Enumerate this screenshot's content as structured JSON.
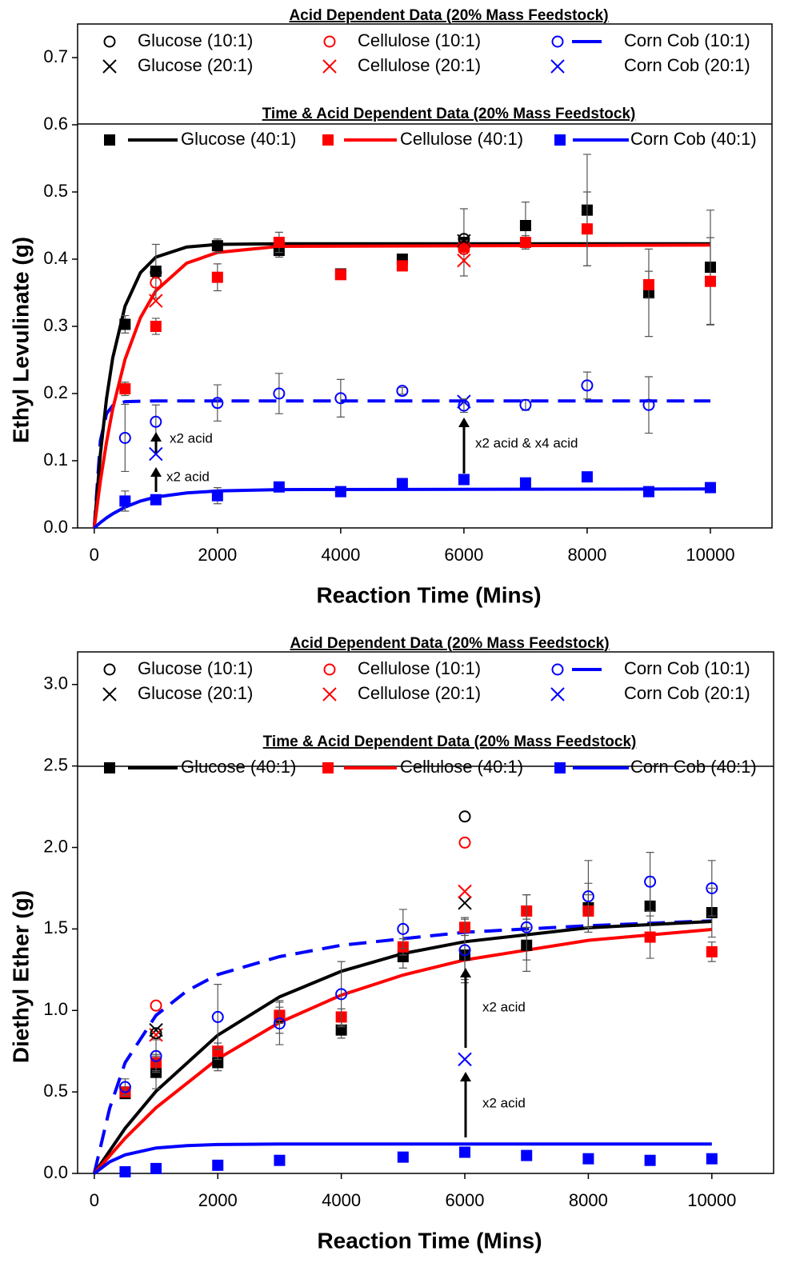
{
  "chart_data": [
    {
      "type": "scatter",
      "y_label": "Ethyl Levulinate (g)",
      "x_label": "Reaction Time (Mins)",
      "legend_titles": [
        "Acid Dependent Data (20% Mass Feedstock)",
        "Time & Acid Dependent Data (20% Mass Feedstock)"
      ],
      "xlim": [
        -270,
        11000
      ],
      "xticks": [
        0,
        2000,
        4000,
        6000,
        8000,
        10000
      ],
      "ylim": [
        0,
        0.75
      ],
      "yticks": [
        {
          "value": 0,
          "label": "0.0"
        },
        0.1,
        0.2,
        0.3,
        0.4,
        0.5,
        0.6,
        0.7
      ],
      "annotations": [
        "x2 acid",
        "x2 acid",
        "x2 acid & x4 acid"
      ],
      "series": [
        {
          "name": "Glucose (10:1)",
          "color": "#000000",
          "marker": "circle",
          "x": [
            1000,
            6000
          ],
          "values": [
            0.38,
            0.43
          ]
        },
        {
          "name": "Cellulose (10:1)",
          "color": "#ff0000",
          "marker": "circle",
          "x": [
            1000,
            6000
          ],
          "values": [
            0.365,
            0.415
          ]
        },
        {
          "name": "Corn Cob (10:1)",
          "color": "#0000ff",
          "marker": "circle",
          "x": [
            500,
            1000,
            2000,
            3000,
            4000,
            5000,
            6000,
            7000,
            8000,
            9000
          ],
          "values": [
            0.134,
            0.158,
            0.186,
            0.2,
            0.193,
            0.204,
            0.182,
            0.183,
            0.212,
            0.183
          ],
          "errors": [
            0.05,
            0.025,
            0.027,
            0.03,
            0.028,
            0.005,
            0.01,
            0.008,
            0.02,
            0.042
          ],
          "fit_style": "dashed",
          "fit": {
            "x": [
              0,
              100,
              200,
              300,
              500,
              1000,
              10000
            ],
            "values": [
              0,
              0.13,
              0.17,
              0.182,
              0.188,
              0.189,
              0.189
            ]
          }
        },
        {
          "name": "Glucose (20:1)",
          "color": "#000000",
          "marker": "x",
          "x": [
            6000
          ],
          "values": [
            0.427
          ]
        },
        {
          "name": "Cellulose (20:1)",
          "color": "#ff0000",
          "marker": "x",
          "x": [
            1000,
            6000
          ],
          "values": [
            0.338,
            0.398
          ]
        },
        {
          "name": "Corn Cob (20:1)",
          "color": "#0000ff",
          "marker": "x",
          "x": [
            1000,
            6000
          ],
          "values": [
            0.11,
            0.188
          ]
        },
        {
          "name": "Glucose (40:1)",
          "color": "#000000",
          "marker": "square",
          "x": [
            500,
            1000,
            2000,
            3000,
            4000,
            5000,
            6000,
            7000,
            8000,
            9000,
            10000
          ],
          "values": [
            0.303,
            0.382,
            0.42,
            0.413,
            0.378,
            0.4,
            0.425,
            0.45,
            0.473,
            0.35,
            0.388
          ],
          "errors": [
            0.013,
            0.04,
            0.01,
            0.01,
            0.005,
            0.005,
            0.05,
            0.035,
            0.083,
            0.065,
            0.085
          ],
          "fit_style": "solid",
          "fit": {
            "x": [
              0,
              100,
              200,
              300,
              500,
              750,
              1000,
              1500,
              2000,
              3000,
              10000
            ],
            "values": [
              0,
              0.11,
              0.193,
              0.253,
              0.33,
              0.38,
              0.403,
              0.418,
              0.422,
              0.423,
              0.423
            ]
          }
        },
        {
          "name": "Cellulose (40:1)",
          "color": "#ff0000",
          "marker": "square",
          "x": [
            500,
            1000,
            2000,
            3000,
            4000,
            5000,
            6000,
            7000,
            8000,
            9000,
            10000
          ],
          "values": [
            0.207,
            0.3,
            0.373,
            0.425,
            0.377,
            0.39,
            0.418,
            0.425,
            0.445,
            0.362,
            0.367
          ],
          "errors": [
            0.01,
            0.012,
            0.02,
            0.015,
            0.005,
            0.005,
            0.01,
            0.01,
            0.055,
            0.02,
            0.065
          ],
          "fit_style": "solid",
          "fit": {
            "x": [
              0,
              100,
              200,
              300,
              500,
              750,
              1000,
              1500,
              2000,
              3000,
              10000
            ],
            "values": [
              0,
              0.07,
              0.128,
              0.177,
              0.251,
              0.313,
              0.353,
              0.394,
              0.41,
              0.419,
              0.421
            ]
          }
        },
        {
          "name": "Corn Cob (40:1)",
          "color": "#0000ff",
          "marker": "square",
          "x": [
            500,
            1000,
            2000,
            3000,
            4000,
            5000,
            6000,
            7000,
            8000,
            9000,
            10000
          ],
          "values": [
            0.04,
            0.042,
            0.048,
            0.061,
            0.054,
            0.066,
            0.072,
            0.067,
            0.076,
            0.054,
            0.06
          ],
          "errors": [
            0.015,
            0.005,
            0.012,
            0.005,
            0.005,
            0.005,
            0.005,
            0.005,
            0.005,
            0.005,
            0.005
          ],
          "fit_style": "solid",
          "fit": {
            "x": [
              0,
              100,
              200,
              300,
              500,
              750,
              1000,
              1500,
              2000,
              3000,
              10000
            ],
            "values": [
              0,
              0.008,
              0.015,
              0.021,
              0.031,
              0.04,
              0.046,
              0.052,
              0.055,
              0.057,
              0.058
            ]
          }
        }
      ]
    },
    {
      "type": "scatter",
      "y_label": "Diethyl Ether (g)",
      "x_label": "Reaction Time (Mins)",
      "legend_titles": [
        "Acid Dependent Data (20% Mass Feedstock)",
        "Time & Acid Dependent Data (20% Mass Feedstock)"
      ],
      "xlim": [
        -270,
        11000
      ],
      "xticks": [
        0,
        2000,
        4000,
        6000,
        8000,
        10000
      ],
      "ylim": [
        0,
        3.2
      ],
      "yticks": [
        {
          "value": 0,
          "label": "0.0"
        },
        0.5,
        {
          "value": 1,
          "label": "1.0"
        },
        1.5,
        {
          "value": 2,
          "label": "2.0"
        },
        2.5,
        {
          "value": 3,
          "label": "3.0"
        }
      ],
      "annotations": [
        "x2 acid",
        "x2 acid"
      ],
      "series": [
        {
          "name": "Glucose (10:1)",
          "color": "#000000",
          "marker": "circle",
          "x": [
            1000,
            6000
          ],
          "values": [
            0.86,
            2.19
          ]
        },
        {
          "name": "Cellulose (10:1)",
          "color": "#ff0000",
          "marker": "circle",
          "x": [
            1000,
            6000
          ],
          "values": [
            1.03,
            2.03
          ]
        },
        {
          "name": "Corn Cob (10:1)",
          "color": "#0000ff",
          "marker": "circle",
          "x": [
            500,
            1000,
            2000,
            3000,
            4000,
            5000,
            6000,
            7000,
            8000,
            9000,
            10000
          ],
          "values": [
            0.53,
            0.72,
            0.96,
            0.92,
            1.1,
            1.5,
            1.37,
            1.51,
            1.7,
            1.79,
            1.75
          ],
          "errors": [
            0.05,
            0.1,
            0.2,
            0.13,
            0.2,
            0.12,
            0.2,
            0.2,
            0.22,
            0.18,
            0.17
          ],
          "fit_style": "dashed",
          "fit": {
            "x": [
              0,
              250,
              500,
              1000,
              1500,
              2000,
              3000,
              4000,
              5000,
              6000,
              8000,
              10000
            ],
            "values": [
              0,
              0.4,
              0.68,
              0.97,
              1.12,
              1.22,
              1.33,
              1.4,
              1.44,
              1.48,
              1.52,
              1.55
            ]
          }
        },
        {
          "name": "Glucose (20:1)",
          "color": "#000000",
          "marker": "x",
          "x": [
            1000,
            6000
          ],
          "values": [
            0.88,
            1.66
          ]
        },
        {
          "name": "Cellulose (20:1)",
          "color": "#ff0000",
          "marker": "x",
          "x": [
            1000,
            6000
          ],
          "values": [
            0.85,
            1.73
          ]
        },
        {
          "name": "Corn Cob (20:1)",
          "color": "#0000ff",
          "marker": "x",
          "x": [
            6000
          ],
          "values": [
            0.7
          ]
        },
        {
          "name": "Glucose (40:1)",
          "color": "#000000",
          "marker": "square",
          "x": [
            500,
            1000,
            2000,
            3000,
            4000,
            5000,
            6000,
            7000,
            8000,
            9000,
            10000
          ],
          "values": [
            0.49,
            0.62,
            0.68,
            0.96,
            0.88,
            1.33,
            1.34,
            1.4,
            1.63,
            1.64,
            1.6
          ],
          "errors": [
            0.03,
            0.1,
            0.05,
            0.1,
            0.05,
            0.07,
            0.15,
            0.16,
            0.15,
            0.18,
            0.15
          ],
          "fit_style": "solid",
          "fit": {
            "x": [
              0,
              500,
              1000,
              2000,
              3000,
              4000,
              5000,
              6000,
              8000,
              10000
            ],
            "values": [
              0,
              0.277,
              0.504,
              0.848,
              1.083,
              1.24,
              1.349,
              1.422,
              1.507,
              1.546
            ]
          }
        },
        {
          "name": "Cellulose (40:1)",
          "color": "#ff0000",
          "marker": "square",
          "x": [
            500,
            1000,
            2000,
            3000,
            4000,
            5000,
            6000,
            7000,
            8000,
            9000,
            10000
          ],
          "values": [
            0.5,
            0.68,
            0.75,
            0.97,
            0.96,
            1.39,
            1.51,
            1.61,
            1.61,
            1.45,
            1.36
          ],
          "errors": [
            0.03,
            0.05,
            0.05,
            0.05,
            0.05,
            0.05,
            0.05,
            0.1,
            0.1,
            0.13,
            0.06
          ],
          "fit_style": "solid",
          "fit": {
            "x": [
              0,
              500,
              1000,
              2000,
              3000,
              4000,
              5000,
              6000,
              8000,
              10000
            ],
            "values": [
              0,
              0.216,
              0.403,
              0.703,
              0.926,
              1.094,
              1.217,
              1.31,
              1.43,
              1.497
            ]
          }
        },
        {
          "name": "Corn Cob (40:1)",
          "color": "#0000ff",
          "marker": "square",
          "x": [
            500,
            1000,
            2000,
            3000,
            5000,
            6000,
            7000,
            8000,
            9000,
            10000
          ],
          "values": [
            0.01,
            0.03,
            0.05,
            0.08,
            0.1,
            0.13,
            0.11,
            0.09,
            0.08,
            0.09
          ],
          "fit_style": "solid",
          "fit": {
            "x": [
              0,
              250,
              500,
              1000,
              1500,
              2000,
              3000,
              10000
            ],
            "values": [
              0,
              0.071,
              0.114,
              0.156,
              0.171,
              0.177,
              0.18,
              0.18
            ]
          }
        }
      ]
    }
  ]
}
